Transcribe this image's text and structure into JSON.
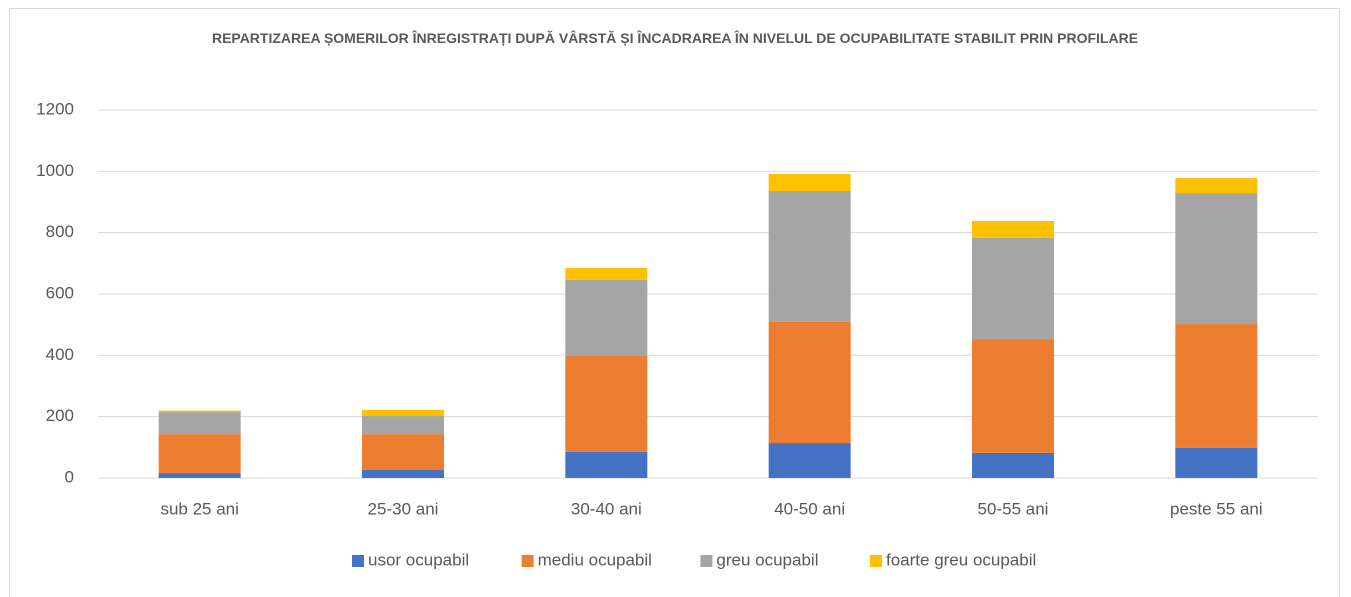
{
  "chart_data": {
    "type": "stacked_bar",
    "title": "REPARTIZAREA ȘOMERILOR ÎNREGISTRAȚI DUPĂ VÂRSTĂ ȘI ÎNCADRAREA ÎN NIVELUL DE OCUPABILITATE STABILIT PRIN PROFILARE",
    "categories": [
      "sub 25 ani",
      "25-30 ani",
      "30-40 ani",
      "40-50 ani",
      "50-55 ani",
      "peste 55 ani"
    ],
    "series": [
      {
        "name": "usor ocupabil",
        "color": "#4472c4",
        "values": [
          16,
          26,
          85,
          114,
          82,
          98
        ]
      },
      {
        "name": "mediu ocupabil",
        "color": "#ed7d31",
        "values": [
          127,
          117,
          313,
          395,
          371,
          404
        ]
      },
      {
        "name": "greu ocupabil",
        "color": "#a5a5a5",
        "values": [
          72,
          59,
          248,
          427,
          330,
          427
        ]
      },
      {
        "name": "foarte greu ocupabil",
        "color": "#ffc000",
        "values": [
          5,
          20,
          39,
          55,
          55,
          49
        ]
      }
    ],
    "ylim": [
      0,
      1200
    ],
    "yticks": [
      0,
      200,
      400,
      600,
      800,
      1000,
      1200
    ],
    "grid": true,
    "legend": "bottom"
  }
}
